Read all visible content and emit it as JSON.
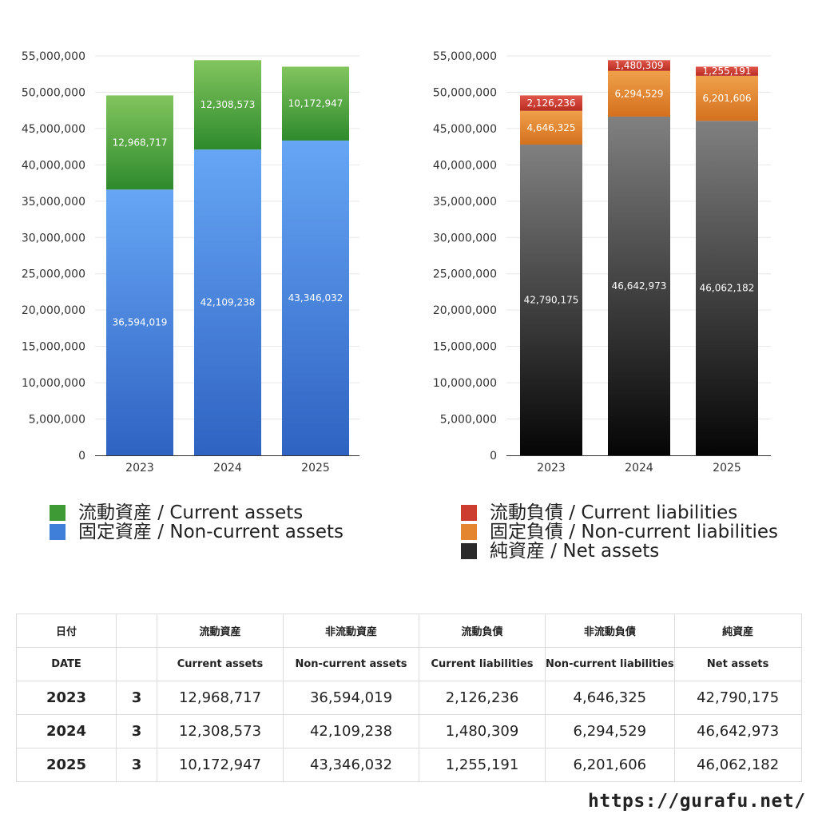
{
  "chart_data": [
    {
      "type": "bar",
      "stacked": true,
      "categories": [
        "2023",
        "2024",
        "2025"
      ],
      "ylim": [
        0,
        55000000
      ],
      "yticks": [
        0,
        5000000,
        10000000,
        15000000,
        20000000,
        25000000,
        30000000,
        35000000,
        40000000,
        45000000,
        50000000,
        55000000
      ],
      "ytick_labels": [
        "0",
        "5,000,000",
        "10,000,000",
        "15,000,000",
        "20,000,000",
        "25,000,000",
        "30,000,000",
        "35,000,000",
        "40,000,000",
        "45,000,000",
        "50,000,000",
        "55,000,000"
      ],
      "grid": true,
      "legend": "below",
      "series": [
        {
          "name": "固定資産 / Non-current assets",
          "values": [
            36594019,
            42109238,
            43346032
          ],
          "labels": [
            "36,594,019",
            "42,109,238",
            "43,346,032"
          ],
          "color_top": "#66a6f5",
          "color_bottom": "#2f63c2"
        },
        {
          "name": "流動資産 / Current assets",
          "values": [
            12968717,
            12308573,
            10172947
          ],
          "labels": [
            "12,968,717",
            "12,308,573",
            "10,172,947"
          ],
          "color_top": "#82c55e",
          "color_bottom": "#2e8a2c"
        }
      ]
    },
    {
      "type": "bar",
      "stacked": true,
      "categories": [
        "2023",
        "2024",
        "2025"
      ],
      "ylim": [
        0,
        55000000
      ],
      "yticks": [
        0,
        5000000,
        10000000,
        15000000,
        20000000,
        25000000,
        30000000,
        35000000,
        40000000,
        45000000,
        50000000,
        55000000
      ],
      "ytick_labels": [
        "0",
        "5,000,000",
        "10,000,000",
        "15,000,000",
        "20,000,000",
        "25,000,000",
        "30,000,000",
        "35,000,000",
        "40,000,000",
        "45,000,000",
        "50,000,000",
        "55,000,000"
      ],
      "grid": true,
      "legend": "below",
      "series": [
        {
          "name": "純資産 / Net assets",
          "values": [
            42790175,
            46642973,
            46062182
          ],
          "labels": [
            "42,790,175",
            "46,642,973",
            "46,062,182"
          ],
          "color_top": "#808080",
          "color_bottom": "#050505"
        },
        {
          "name": "固定負債 / Non-current liabilities",
          "values": [
            4646325,
            6294529,
            6201606
          ],
          "labels": [
            "4,646,325",
            "6,294,529",
            "6,201,606"
          ],
          "color_top": "#f0a04a",
          "color_bottom": "#d4701e"
        },
        {
          "name": "流動負債 / Current liabilities",
          "values": [
            2126236,
            1480309,
            1255191
          ],
          "labels": [
            "2,126,236",
            "1,480,309",
            "1,255,191"
          ],
          "color_top": "#e0564a",
          "color_bottom": "#b92c22"
        }
      ]
    }
  ],
  "legend_left": [
    {
      "label": "流動資産 / Current assets",
      "color": "#3d9a35"
    },
    {
      "label": "固定資産 / Non-current assets",
      "color": "#3f7fd9"
    }
  ],
  "legend_right": [
    {
      "label": "流動負債 / Current liabilities",
      "color": "#cc3d30"
    },
    {
      "label": "固定負債 / Non-current liabilities",
      "color": "#e4862f"
    },
    {
      "label": "純資産 / Net assets",
      "color": "#2a2a2a"
    }
  ],
  "table": {
    "header_jp": [
      "日付",
      "",
      "流動資産",
      "非流動資産",
      "流動負債",
      "非流動負債",
      "純資産"
    ],
    "header_en": [
      "DATE",
      "",
      "Current assets",
      "Non-current assets",
      "Current liabilities",
      "Non-current liabilities",
      "Net assets"
    ],
    "rows": [
      {
        "year": "2023",
        "month": "3",
        "values": [
          "12,968,717",
          "36,594,019",
          "2,126,236",
          "4,646,325",
          "42,790,175"
        ]
      },
      {
        "year": "2024",
        "month": "3",
        "values": [
          "12,308,573",
          "42,109,238",
          "1,480,309",
          "6,294,529",
          "46,642,973"
        ]
      },
      {
        "year": "2025",
        "month": "3",
        "values": [
          "10,172,947",
          "43,346,032",
          "1,255,191",
          "6,201,606",
          "46,062,182"
        ]
      }
    ]
  },
  "footer": {
    "url": "https://gurafu.net/"
  }
}
